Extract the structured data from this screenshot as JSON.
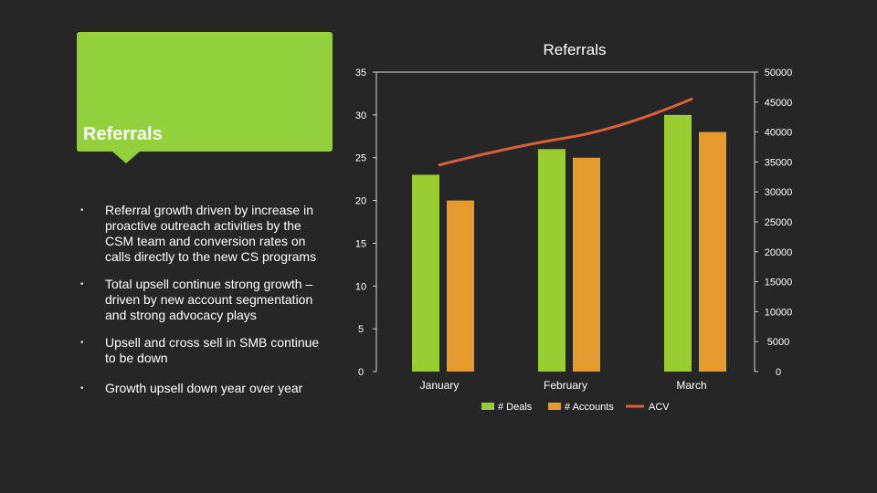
{
  "left_panel": {
    "title": "Referrals",
    "bullets": [
      "Referral growth driven by increase in proactive outreach activities by the CSM team and conversion rates on calls directly to the new CS programs",
      " Total upsell continue strong growth – driven by new account segmentation and strong advocacy plays",
      "Upsell and cross sell in SMB continue to be down",
      "Growth upsell down year over year"
    ],
    "bullet_glyph": "•"
  },
  "colors": {
    "background": "#262626",
    "accent_green": "#92d03e",
    "deals": "#9acd32",
    "accounts": "#e59b2e",
    "acv": "#d9603b",
    "gridline": "#d9d9d9",
    "text": "#ffffff"
  },
  "chart_data": {
    "type": "bar",
    "title": "Referrals",
    "categories": [
      "January",
      "February",
      "March"
    ],
    "series": [
      {
        "name": "# Deals",
        "type": "bar",
        "axis": "left",
        "color": "#9acd32",
        "values": [
          23,
          26,
          30
        ]
      },
      {
        "name": "# Accounts",
        "type": "bar",
        "axis": "left",
        "color": "#e59b2e",
        "values": [
          20,
          25,
          28
        ]
      },
      {
        "name": "ACV",
        "type": "line",
        "axis": "right",
        "color": "#d9603b",
        "values": [
          34500,
          39000,
          45500
        ]
      }
    ],
    "y_left": {
      "min": 0,
      "max": 35,
      "step": 5,
      "ticks": [
        "0",
        "5",
        "10",
        "15",
        "20",
        "25",
        "30",
        "35"
      ]
    },
    "y_right": {
      "min": 0,
      "max": 50000,
      "step": 5000,
      "ticks": [
        "0",
        "5000",
        "10000",
        "15000",
        "20000",
        "25000",
        "30000",
        "35000",
        "40000",
        "45000",
        "50000"
      ]
    },
    "grid": false,
    "legend": "bottom"
  }
}
